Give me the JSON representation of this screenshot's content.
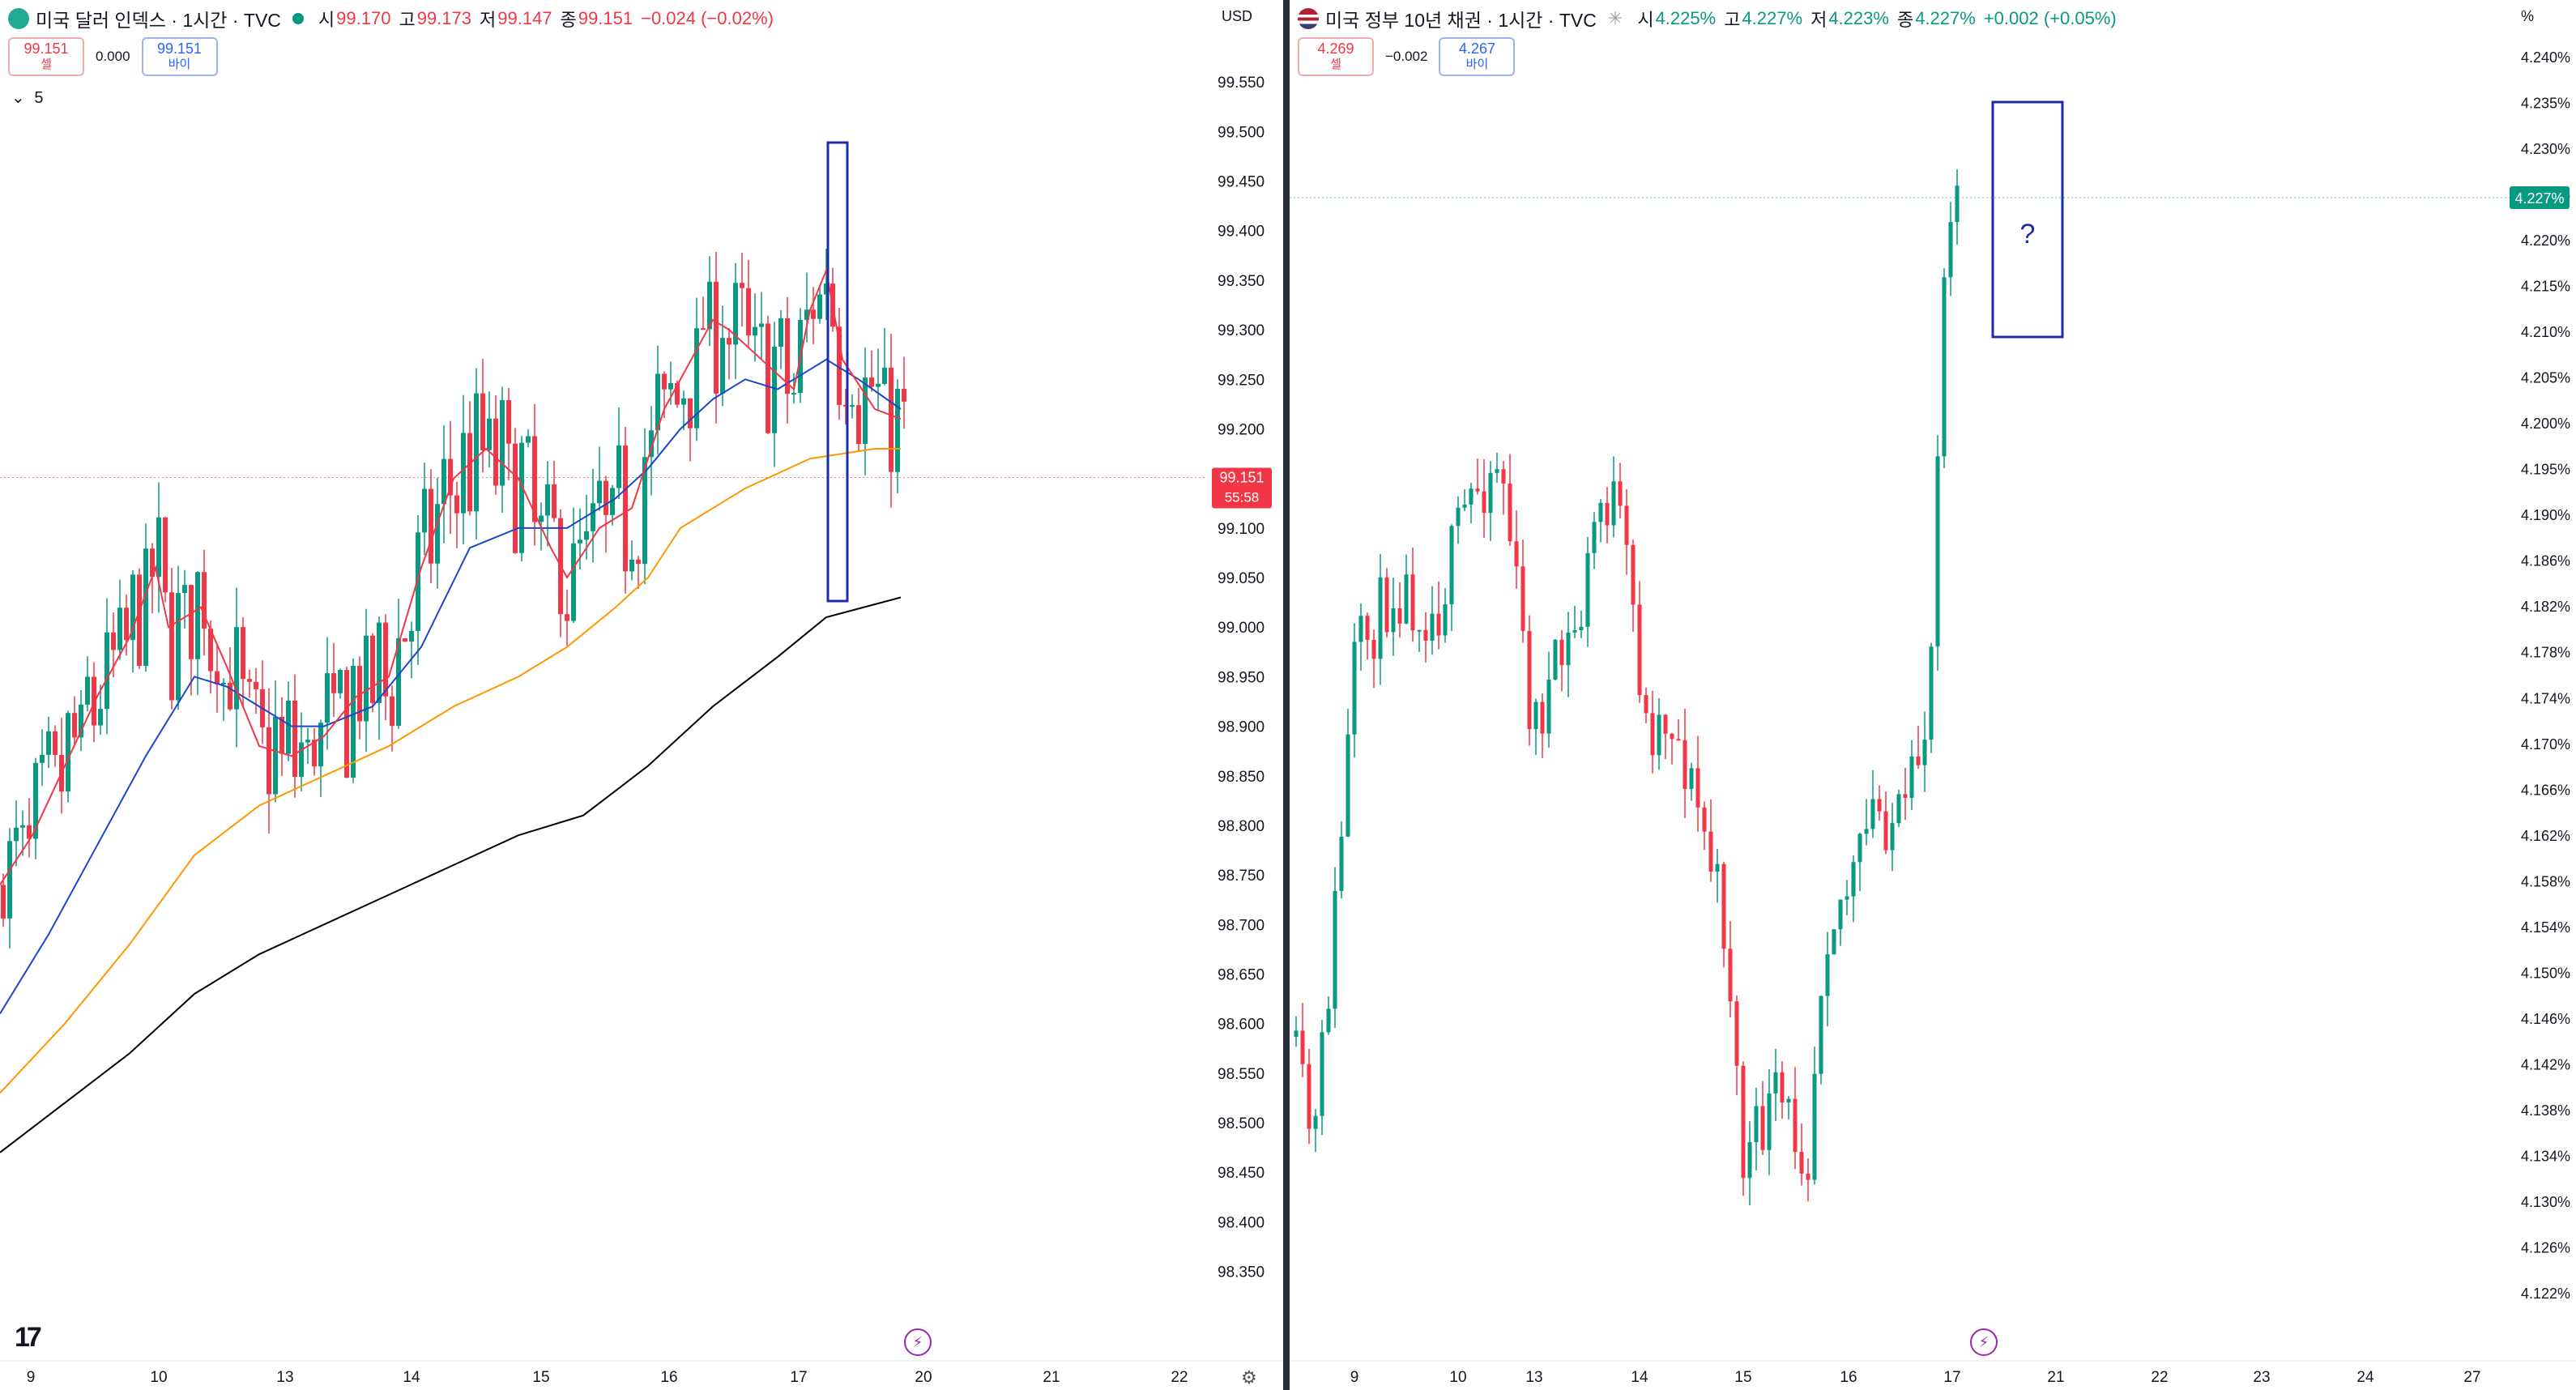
{
  "left": {
    "title": "미국 달러 인덱스 · 1시간 · TVC",
    "ohlc": {
      "o_label": "시",
      "o": "99.170",
      "h_label": "고",
      "h": "99.173",
      "l_label": "저",
      "l": "99.147",
      "c_label": "종",
      "c": "99.151",
      "change": "−0.024 (−0.02%)"
    },
    "sell": {
      "price": "99.151",
      "label": "셀"
    },
    "spread": "0.000",
    "buy": {
      "price": "99.151",
      "label": "바이"
    },
    "indicator_count": "5",
    "currency": "USD",
    "last_price": "99.151",
    "countdown": "55:58",
    "chevron": "chevron-down-icon"
  },
  "right": {
    "title": "미국 정부 10년 채권 · 1시간 · TVC",
    "ohlc": {
      "o_label": "시",
      "o": "4.225%",
      "h_label": "고",
      "h": "4.227%",
      "l_label": "저",
      "l": "4.223%",
      "c_label": "종",
      "c": "4.227%",
      "change": "+0.002 (+0.05%)"
    },
    "sell": {
      "price": "4.269",
      "label": "셀"
    },
    "spread": "−0.002",
    "buy": {
      "price": "4.267",
      "label": "바이"
    },
    "currency": "%",
    "last_price": "4.227%",
    "annotation": "?"
  },
  "colors": {
    "up": "#089981",
    "down": "#f23645",
    "ema_red": "#f23645",
    "ema_blue": "#1848cc",
    "ema_orange": "#ff9800",
    "ema_black": "#000000",
    "box": "#1e2ca8"
  },
  "chart_data": [
    {
      "type": "candlestick",
      "name": "left",
      "y_ticks": [
        "99.550",
        "99.500",
        "99.450",
        "99.400",
        "99.350",
        "99.300",
        "99.250",
        "99.200",
        "99.150",
        "99.100",
        "99.050",
        "99.000",
        "98.950",
        "98.900",
        "98.850",
        "98.800",
        "98.750",
        "98.700",
        "98.650",
        "98.600",
        "98.550",
        "98.500",
        "98.450",
        "98.400",
        "98.350"
      ],
      "ylim": [
        98.3,
        99.6
      ],
      "x_ticks": [
        "9",
        "10",
        "13",
        "14",
        "15",
        "16",
        "17",
        "20",
        "21",
        "22"
      ],
      "ema_red": [
        [
          0,
          98.74
        ],
        [
          20,
          98.79
        ],
        [
          40,
          98.86
        ],
        [
          60,
          98.93
        ],
        [
          80,
          98.99
        ],
        [
          96,
          99.06
        ],
        [
          104,
          99.0
        ],
        [
          124,
          99.02
        ],
        [
          140,
          98.96
        ],
        [
          160,
          98.88
        ],
        [
          180,
          98.87
        ],
        [
          200,
          98.89
        ],
        [
          220,
          98.93
        ],
        [
          240,
          98.95
        ],
        [
          260,
          99.06
        ],
        [
          280,
          99.15
        ],
        [
          300,
          99.18
        ],
        [
          320,
          99.15
        ],
        [
          340,
          99.08
        ],
        [
          350,
          99.05
        ],
        [
          370,
          99.1
        ],
        [
          390,
          99.12
        ],
        [
          410,
          99.22
        ],
        [
          430,
          99.28
        ],
        [
          440,
          99.31
        ],
        [
          450,
          99.3
        ],
        [
          470,
          99.27
        ],
        [
          490,
          99.24
        ],
        [
          500,
          99.32
        ],
        [
          510,
          99.36
        ],
        [
          520,
          99.27
        ],
        [
          540,
          99.22
        ],
        [
          556,
          99.21
        ]
      ],
      "ema_blue": [
        [
          0,
          98.61
        ],
        [
          30,
          98.69
        ],
        [
          60,
          98.78
        ],
        [
          90,
          98.87
        ],
        [
          120,
          98.95
        ],
        [
          140,
          98.94
        ],
        [
          160,
          98.92
        ],
        [
          180,
          98.9
        ],
        [
          200,
          98.9
        ],
        [
          230,
          98.92
        ],
        [
          260,
          98.98
        ],
        [
          290,
          99.08
        ],
        [
          320,
          99.1
        ],
        [
          350,
          99.1
        ],
        [
          380,
          99.13
        ],
        [
          400,
          99.16
        ],
        [
          420,
          99.2
        ],
        [
          440,
          99.23
        ],
        [
          460,
          99.25
        ],
        [
          480,
          99.24
        ],
        [
          500,
          99.26
        ],
        [
          510,
          99.27
        ],
        [
          530,
          99.25
        ],
        [
          556,
          99.22
        ]
      ],
      "ema_orange": [
        [
          0,
          98.53
        ],
        [
          40,
          98.6
        ],
        [
          80,
          98.68
        ],
        [
          120,
          98.77
        ],
        [
          160,
          98.82
        ],
        [
          200,
          98.85
        ],
        [
          240,
          98.88
        ],
        [
          280,
          98.92
        ],
        [
          320,
          98.95
        ],
        [
          350,
          98.98
        ],
        [
          380,
          99.02
        ],
        [
          400,
          99.05
        ],
        [
          420,
          99.1
        ],
        [
          460,
          99.14
        ],
        [
          500,
          99.17
        ],
        [
          540,
          99.18
        ],
        [
          556,
          99.18
        ]
      ],
      "ema_black": [
        [
          0,
          98.47
        ],
        [
          40,
          98.52
        ],
        [
          80,
          98.57
        ],
        [
          120,
          98.63
        ],
        [
          160,
          98.67
        ],
        [
          200,
          98.7
        ],
        [
          240,
          98.73
        ],
        [
          280,
          98.76
        ],
        [
          320,
          98.79
        ],
        [
          360,
          98.81
        ],
        [
          400,
          98.86
        ],
        [
          440,
          98.92
        ],
        [
          480,
          98.97
        ],
        [
          510,
          99.01
        ],
        [
          556,
          99.03
        ]
      ]
    },
    {
      "type": "candlestick",
      "name": "right",
      "y_ticks": [
        "4.240%",
        "4.235%",
        "4.230%",
        "4.225%",
        "4.220%",
        "4.215%",
        "4.210%",
        "4.205%",
        "4.200%",
        "4.195%",
        "4.190%",
        "4.186%",
        "4.182%",
        "4.178%",
        "4.174%",
        "4.170%",
        "4.166%",
        "4.162%",
        "4.158%",
        "4.154%",
        "4.150%",
        "4.146%",
        "4.142%",
        "4.138%",
        "4.134%",
        "4.130%",
        "4.126%",
        "4.122%"
      ],
      "ylim": [
        4.12,
        4.241
      ],
      "x_ticks": [
        "9",
        "10",
        "13",
        "14",
        "15",
        "16",
        "17",
        "21",
        "22",
        "23",
        "24",
        "27"
      ]
    }
  ]
}
